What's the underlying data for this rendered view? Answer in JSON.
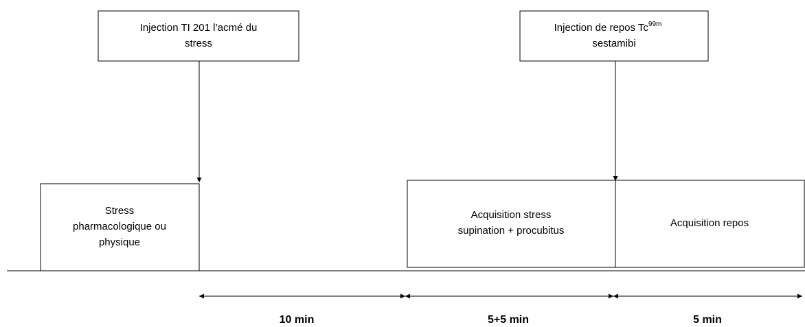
{
  "injections": [
    {
      "lines": [
        "Injection TI 201  l’acmé du",
        "stress"
      ]
    },
    {
      "lines": [
        "Injection de repos Tc",
        "sestamibi"
      ],
      "sup": "99m"
    }
  ],
  "phases": [
    {
      "lines": [
        "Stress",
        "pharmacologique ou",
        "physique"
      ]
    },
    {
      "lines": [
        "Acquisition stress",
        "supination + procubitus"
      ]
    },
    {
      "lines": [
        "Acquisition  repos"
      ]
    }
  ],
  "durations": [
    "10 min",
    "5+5 min",
    "5 min"
  ]
}
